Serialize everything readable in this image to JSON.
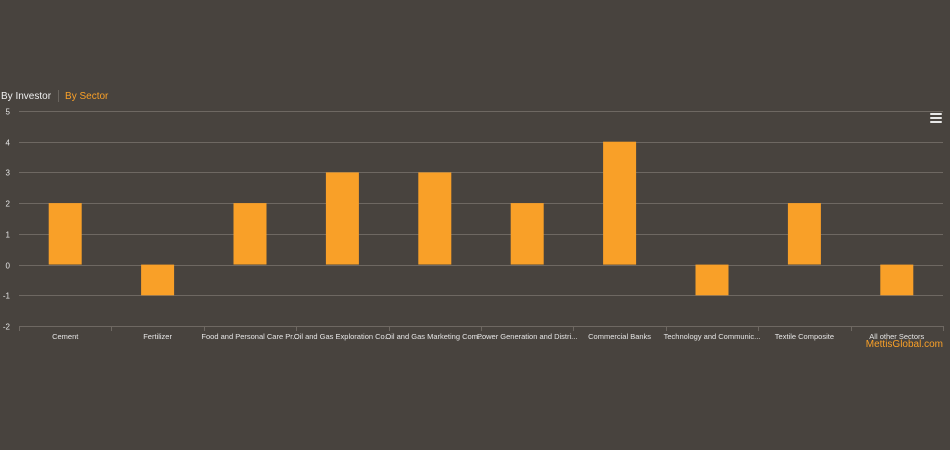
{
  "tabs": [
    {
      "label": "By Investor",
      "active": false
    },
    {
      "label": "By Sector",
      "active": true
    }
  ],
  "colors": {
    "background": "#48433e",
    "bar": "#f9a028",
    "tab_inactive": "#f0f0f0",
    "tab_active": "#f9a028",
    "grid": "#6e6862",
    "axis_text": "#e6e6e6",
    "credit": "#f9a028"
  },
  "credit": "MettisGlobal.com",
  "menu_icon": "hamburger-menu-icon",
  "chart_data": {
    "type": "bar",
    "title": "",
    "xlabel": "",
    "ylabel": "",
    "ylim": [
      -2,
      5
    ],
    "yticks": [
      "5",
      "4",
      "3",
      "2",
      "1",
      "0",
      "-1",
      "-2"
    ],
    "categories": [
      "Cement",
      "Fertilizer",
      "Food and Personal Care Pr...",
      "Oil and Gas Exploration Co...",
      "Oil and Gas Marketing Com...",
      "Power Generation and Distri...",
      "Commercial Banks",
      "Technology and Communic...",
      "Textile Composite",
      "All other Sectors"
    ],
    "values": [
      2,
      -1,
      2,
      3,
      3,
      2,
      4,
      -1,
      2,
      -1
    ],
    "grid": true,
    "legend": "none"
  }
}
